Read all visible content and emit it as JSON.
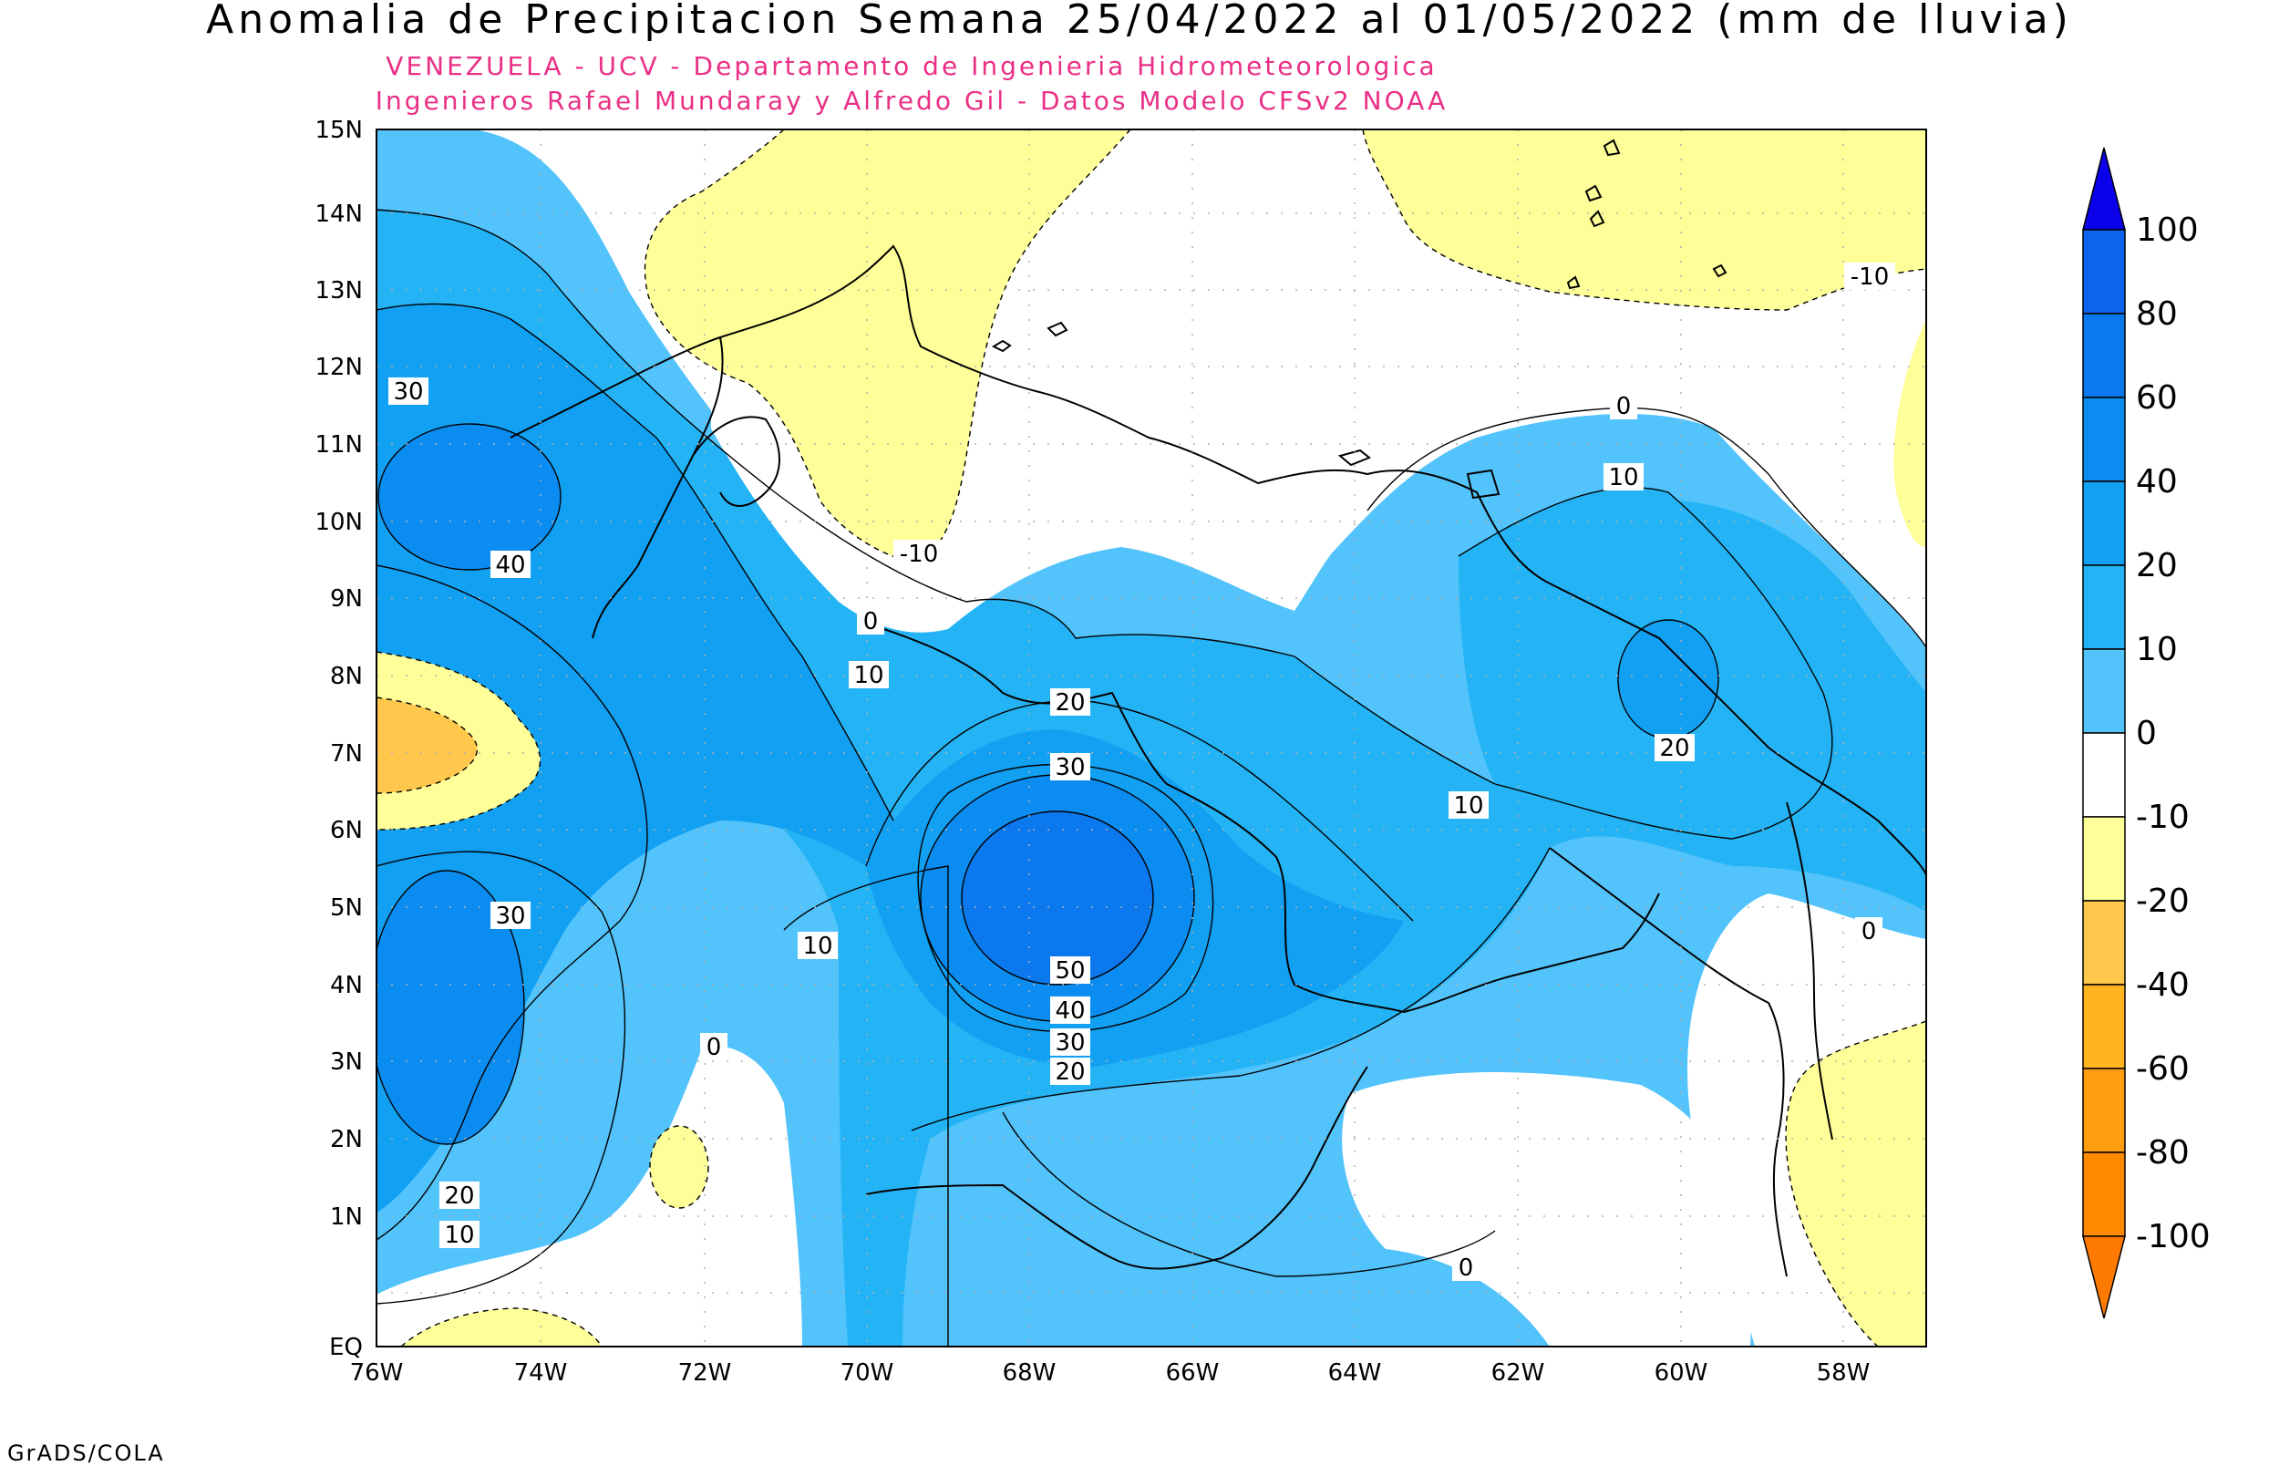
{
  "title": "Anomalia de Precipitacion Semana 25/04/2022 al 01/05/2022 (mm de lluvia)",
  "subtitle_line1": "VENEZUELA - UCV - Departamento de Ingenieria Hidrometeorologica",
  "subtitle_line2": "Ingenieros Rafael Mundaray y Alfredo Gil - Datos Modelo CFSv2 NOAA",
  "footer": "GrADS/COLA",
  "axes": {
    "lat_labels": [
      "15N",
      "14N",
      "13N",
      "12N",
      "11N",
      "10N",
      "9N",
      "8N",
      "7N",
      "6N",
      "5N",
      "4N",
      "3N",
      "2N",
      "1N",
      "EQ"
    ],
    "lon_labels": [
      "76W",
      "74W",
      "72W",
      "70W",
      "68W",
      "66W",
      "64W",
      "62W",
      "60W",
      "58W"
    ]
  },
  "contour_labels": {
    "a": "30",
    "b": "40",
    "c": "30",
    "d": "20",
    "e": "10",
    "f": "0",
    "g": "10",
    "h": "10",
    "i": "0",
    "j": "-10",
    "k": "20",
    "l": "30",
    "m": "50",
    "n": "40",
    "o": "30",
    "p": "20",
    "q": "10",
    "r": "0",
    "s": "10",
    "t": "20",
    "u": "0",
    "v": "-10",
    "w": "0"
  },
  "colorbar": {
    "labels": [
      "100",
      "80",
      "60",
      "40",
      "20",
      "10",
      "0",
      "-10",
      "-20",
      "-40",
      "-60",
      "-80",
      "-100"
    ],
    "colors": [
      "#0a00ea",
      "#0a64ec",
      "#0b78ee",
      "#0b8cf0",
      "#12a0f2",
      "#24b4f5",
      "#52c3fb",
      "#ffffff",
      "#ffff99",
      "#ffc84d",
      "#ffb420",
      "#ff9d10",
      "#ff8a00",
      "#ff7a00"
    ]
  }
}
